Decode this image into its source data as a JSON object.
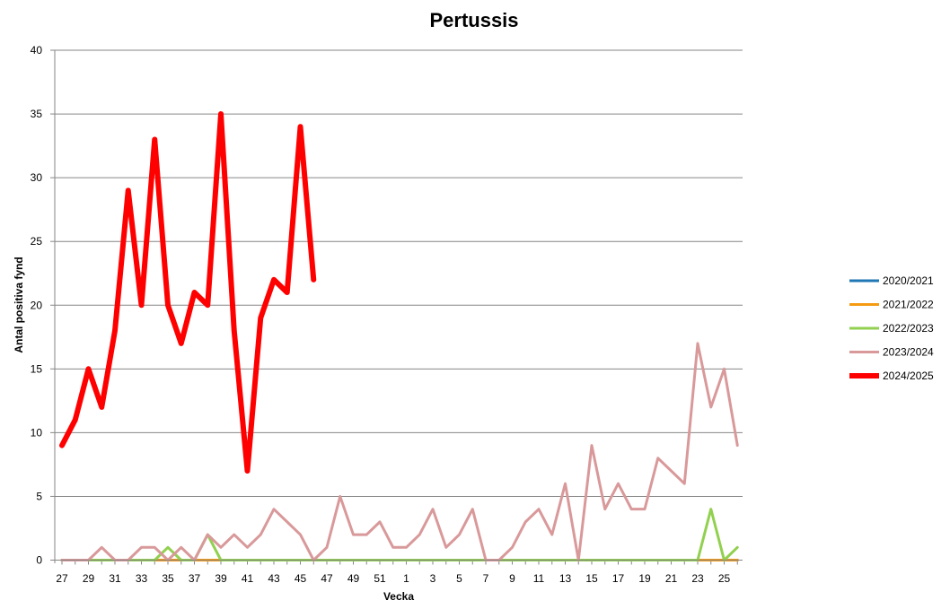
{
  "chart_data": {
    "type": "line",
    "title": "Pertussis",
    "xlabel": "Vecka",
    "ylabel": "Antal positiva fynd",
    "ylim": [
      0,
      40
    ],
    "yticks": [
      0,
      5,
      10,
      15,
      20,
      25,
      30,
      35,
      40
    ],
    "grid": true,
    "legend_position": "right",
    "weeks": [
      27,
      28,
      29,
      30,
      31,
      32,
      33,
      34,
      35,
      36,
      37,
      38,
      39,
      40,
      41,
      42,
      43,
      44,
      45,
      46,
      47,
      48,
      49,
      50,
      51,
      52,
      1,
      2,
      3,
      4,
      5,
      6,
      7,
      8,
      9,
      10,
      11,
      12,
      13,
      14,
      15,
      16,
      17,
      18,
      19,
      20,
      21,
      22,
      23,
      24,
      25,
      26
    ],
    "xtick_labels": [
      "27",
      "29",
      "31",
      "33",
      "35",
      "37",
      "39",
      "41",
      "43",
      "45",
      "47",
      "49",
      "51",
      "1",
      "3",
      "5",
      "7",
      "9",
      "11",
      "13",
      "15",
      "17",
      "19",
      "21",
      "23",
      "25"
    ],
    "series": [
      {
        "name": "2020/2021",
        "color": "#1f77b4",
        "width": 3,
        "values": [
          0,
          0,
          0,
          0,
          0,
          0,
          0,
          0,
          0,
          0,
          0,
          0,
          0,
          0,
          0,
          0,
          0,
          0,
          0,
          0,
          0,
          0,
          0,
          0,
          0,
          0,
          0,
          0,
          0,
          0,
          0,
          0,
          0,
          0,
          0,
          0,
          0,
          0,
          0,
          0,
          0,
          0,
          0,
          0,
          0,
          0,
          0,
          0,
          0,
          0,
          0,
          0
        ]
      },
      {
        "name": "2021/2022",
        "color": "#f59b12",
        "width": 3,
        "values": [
          0,
          0,
          0,
          0,
          0,
          0,
          0,
          0,
          0,
          0,
          0,
          0,
          0,
          0,
          0,
          0,
          0,
          0,
          0,
          0,
          0,
          0,
          0,
          0,
          0,
          0,
          0,
          0,
          0,
          0,
          0,
          0,
          0,
          0,
          0,
          0,
          0,
          0,
          0,
          0,
          0,
          0,
          0,
          0,
          0,
          0,
          0,
          0,
          0,
          0,
          0,
          0
        ]
      },
      {
        "name": "2022/2023",
        "color": "#92d050",
        "width": 3,
        "values": [
          0,
          0,
          0,
          0,
          0,
          0,
          0,
          0,
          1,
          0,
          0,
          2,
          0,
          0,
          0,
          0,
          0,
          0,
          0,
          0,
          0,
          0,
          0,
          0,
          0,
          0,
          0,
          0,
          0,
          0,
          0,
          0,
          0,
          0,
          0,
          0,
          0,
          0,
          0,
          0,
          0,
          0,
          0,
          0,
          0,
          0,
          0,
          0,
          0,
          4,
          0,
          1
        ]
      },
      {
        "name": "2023/2024",
        "color": "#d9999a",
        "width": 3,
        "values": [
          0,
          0,
          0,
          1,
          0,
          0,
          1,
          1,
          0,
          1,
          0,
          2,
          1,
          2,
          1,
          2,
          4,
          3,
          2,
          0,
          1,
          5,
          2,
          2,
          3,
          1,
          1,
          2,
          4,
          1,
          2,
          4,
          0,
          0,
          1,
          3,
          4,
          2,
          6,
          0,
          9,
          4,
          6,
          4,
          4,
          8,
          7,
          6,
          17,
          12,
          15,
          9
        ]
      },
      {
        "name": "2024/2025",
        "color": "#ff0000",
        "width": 6,
        "values": [
          9,
          11,
          15,
          12,
          18,
          29,
          20,
          33,
          20,
          17,
          21,
          20,
          35,
          18,
          7,
          19,
          22,
          21,
          34,
          22
        ]
      }
    ]
  }
}
